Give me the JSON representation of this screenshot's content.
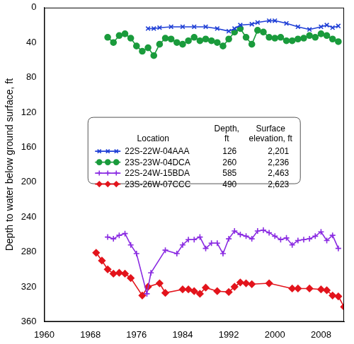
{
  "chart_data": {
    "type": "line",
    "y_label": "Depth to water below ground surface, ft",
    "xlim": [
      1960,
      2012
    ],
    "xticks": [
      1960,
      1968,
      1976,
      1984,
      1992,
      2000,
      2008
    ],
    "ylim": [
      0,
      360
    ],
    "yticks": [
      0,
      40,
      80,
      120,
      160,
      200,
      240,
      280,
      320,
      360
    ],
    "reverse_y": true,
    "grid": false,
    "legend": "center",
    "legend_headers": [
      "Location",
      "Depth, ft",
      "Surface elevation, ft"
    ],
    "series": [
      {
        "name": "22S-22W-04AAA",
        "color": "#1f3fd6",
        "marker": "x",
        "line_style": "solid",
        "depth": 126,
        "surface_elevation": {
          "value": 2201,
          "label": "2,201"
        },
        "x": [
          1978,
          1979,
          1980,
          1982,
          1984,
          1986,
          1988,
          1990,
          1992,
          1993,
          1994,
          1996,
          1997,
          1999,
          2000,
          2002,
          2004,
          2006,
          2008,
          2009,
          2010,
          2011
        ],
        "values": [
          24,
          24,
          23,
          22,
          22,
          22,
          22,
          24,
          27,
          24,
          20,
          19,
          17,
          15,
          15,
          18,
          22,
          25,
          22,
          20,
          23,
          21
        ]
      },
      {
        "name": "23S-23W-04DCA",
        "color": "#1a9b3c",
        "marker": "circle",
        "line_style": "solid",
        "depth": 260,
        "surface_elevation": {
          "value": 2236,
          "label": "2,236"
        },
        "x": [
          1971,
          1972,
          1973,
          1974,
          1975,
          1976,
          1977,
          1978,
          1979,
          1980,
          1981,
          1982,
          1983,
          1984,
          1985,
          1986,
          1987,
          1988,
          1989,
          1990,
          1991,
          1992,
          1993,
          1994,
          1995,
          1996,
          1997,
          1998,
          1999,
          2000,
          2001,
          2002,
          2003,
          2004,
          2005,
          2006,
          2007,
          2008,
          2009,
          2010,
          2011
        ],
        "values": [
          34,
          40,
          32,
          30,
          35,
          44,
          50,
          46,
          55,
          42,
          35,
          36,
          40,
          42,
          38,
          34,
          38,
          36,
          38,
          40,
          44,
          36,
          28,
          24,
          34,
          42,
          26,
          28,
          34,
          35,
          34,
          38,
          38,
          36,
          35,
          32,
          34,
          30,
          32,
          36,
          39
        ]
      },
      {
        "name": "22S-24W-15BDA",
        "color": "#8a2be2",
        "marker": "plus",
        "line_style": "solid",
        "depth": 585,
        "surface_elevation": {
          "value": 2463,
          "label": "2,463"
        },
        "x": [
          1971,
          1972,
          1973,
          1974,
          1975,
          1976,
          1977.8,
          1978.5,
          1981,
          1983,
          1984,
          1985,
          1986,
          1987,
          1988,
          1989,
          1990,
          1991,
          1992,
          1993,
          1994,
          1995,
          1996,
          1997,
          1998,
          1999,
          2000,
          2001,
          2002,
          2003,
          2004,
          2005,
          2006,
          2007,
          2008,
          2009,
          2010,
          2011
        ],
        "values": [
          263,
          265,
          261,
          259,
          272,
          282,
          328,
          304,
          278,
          282,
          272,
          266,
          266,
          263,
          276,
          270,
          270,
          282,
          265,
          256,
          260,
          262,
          265,
          256,
          255,
          258,
          262,
          266,
          264,
          272,
          267,
          266,
          265,
          262,
          257,
          267,
          261,
          276
        ]
      },
      {
        "name": "23S-26W-07CCC",
        "color": "#e3141c",
        "marker": "diamond",
        "line_style": "solid",
        "depth": 490,
        "surface_elevation": {
          "value": 2623,
          "label": "2,623"
        },
        "x": [
          1969,
          1970,
          1971,
          1972,
          1973,
          1974,
          1975,
          1977,
          1978,
          1980,
          1981,
          1984,
          1985,
          1986,
          1987,
          1988,
          1990,
          1992,
          1993,
          1994,
          1995,
          1996,
          1999,
          2003,
          2004,
          2006,
          2008,
          2009,
          2010,
          2011,
          2012
        ],
        "values": [
          281,
          290,
          300,
          305,
          304,
          305,
          310,
          330,
          320,
          316,
          327,
          323,
          323,
          325,
          328,
          321,
          325,
          326,
          320,
          315,
          316,
          317,
          316,
          322,
          322,
          322,
          323,
          324,
          330,
          331,
          343
        ]
      }
    ]
  }
}
